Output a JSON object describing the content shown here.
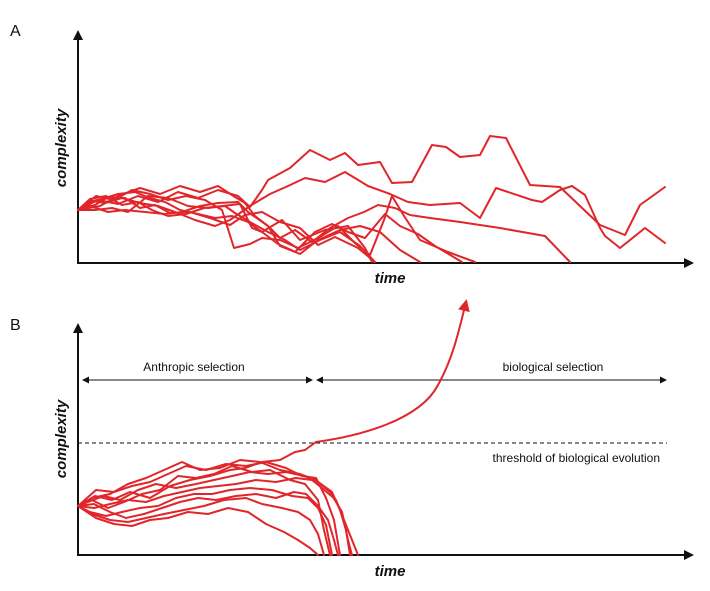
{
  "panel_a": {
    "letter": "A",
    "y_label": "complexity",
    "x_label": "time"
  },
  "panel_b": {
    "letter": "B",
    "y_label": "complexity",
    "x_label": "time",
    "anthropic_label": "Anthropic selection",
    "biological_label": "biological selection",
    "threshold_label": "threshold of biological evolution"
  },
  "colors": {
    "trace": "#e0262b",
    "axis": "#111111"
  }
}
